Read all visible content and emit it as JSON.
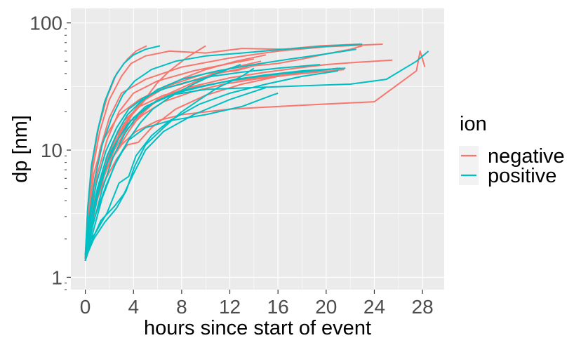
{
  "chart_data": {
    "type": "line",
    "title": "",
    "xlabel": "hours since start of event",
    "ylabel": "dp [nm]",
    "xlim": [
      -1.2,
      29.8
    ],
    "ylim": [
      0.8,
      130
    ],
    "yscale": "log",
    "x_ticks": [
      0,
      4,
      8,
      12,
      16,
      20,
      24,
      28
    ],
    "y_ticks": [
      1,
      10,
      100
    ],
    "grid": true,
    "legend": {
      "title": "ion",
      "position": "right",
      "entries": [
        {
          "label": "negative",
          "color": "#F8766D"
        },
        {
          "label": "positive",
          "color": "#00BFC4"
        }
      ]
    },
    "series": [
      {
        "name": "negative",
        "color": "#F8766D",
        "lines": [
          {
            "x": [
              0,
              0.3,
              0.7,
              1.2,
              2,
              3,
              5,
              8,
              12,
              16,
              20,
              24.7
            ],
            "y": [
              1.4,
              2.5,
              5,
              10,
              18,
              28,
              36,
              45,
              53,
              60,
              65,
              68
            ]
          },
          {
            "x": [
              0,
              0.5,
              1,
              1.8,
              2.8,
              4,
              6,
              9,
              12,
              14
            ],
            "y": [
              1.35,
              3,
              6.5,
              12,
              20,
              28,
              35,
              42,
              48,
              52
            ]
          },
          {
            "x": [
              0,
              0.4,
              1,
              2,
              3,
              4.2,
              6,
              8,
              12,
              16,
              20,
              24,
              27.5,
              27.8,
              28.2
            ],
            "y": [
              1.4,
              2.2,
              4.5,
              8,
              11,
              14,
              17,
              19,
              21,
              22,
              23,
              24,
              42,
              60,
              45
            ]
          },
          {
            "x": [
              0,
              0.5,
              1.2,
              2.4,
              3.2,
              4.5,
              6,
              8.5,
              10,
              12.5,
              14,
              16,
              18,
              20,
              22,
              23
            ],
            "y": [
              1.35,
              2.6,
              5.5,
              11,
              16,
              23,
              30,
              36,
              40,
              42,
              46,
              48,
              52,
              57,
              62,
              66
            ]
          },
          {
            "x": [
              0,
              0.2,
              0.6,
              1.2,
              2,
              3,
              3.8,
              5,
              7,
              10,
              13,
              16.5,
              19.5,
              22.8
            ],
            "y": [
              1.4,
              3,
              7,
              14,
              25,
              38,
              48,
              55,
              60,
              58,
              63,
              62,
              66,
              68
            ]
          },
          {
            "x": [
              0,
              0.3,
              0.8,
              1.5,
              2.5,
              3.6,
              4.5,
              6,
              8.5,
              12,
              15,
              17.5,
              20,
              22.5,
              25.5
            ],
            "y": [
              1.45,
              2.1,
              3.6,
              6.2,
              9.5,
              14,
              18.5,
              25,
              31,
              37,
              41,
              44,
              47,
              49,
              51
            ]
          },
          {
            "x": [
              0,
              0.4,
              1,
              1.8,
              2.6,
              3.5,
              4.2,
              5.3,
              7,
              9,
              11,
              13.5
            ],
            "y": [
              1.4,
              2.4,
              4.8,
              8.5,
              13,
              17,
              17.5,
              22,
              28,
              34,
              40,
              45
            ]
          },
          {
            "x": [
              0.1,
              0.5,
              1.2,
              2,
              3,
              4,
              5.2,
              6,
              7,
              8.5,
              10
            ],
            "y": [
              1.8,
              3,
              5.5,
              9,
              14,
              20,
              27,
              34,
              42,
              54,
              66
            ]
          },
          {
            "x": [
              0,
              0.6,
              1.4,
              2.2,
              3.2,
              4.5,
              6.5,
              9,
              12,
              15.5,
              18.5,
              21
            ],
            "y": [
              1.35,
              2.8,
              6,
              11,
              17,
              22,
              27,
              31,
              35,
              38,
              41,
              44
            ]
          },
          {
            "x": [
              0,
              0.3,
              0.7,
              1.5,
              2.8,
              4.5,
              6.2,
              8,
              10,
              12,
              14.6
            ],
            "y": [
              1.5,
              3.2,
              6.5,
              12,
              19,
              25,
              30,
              33,
              38,
              44,
              50
            ]
          },
          {
            "x": [
              0,
              0.4,
              0.9,
              1.6,
              2.4,
              3.4,
              4.8,
              6.5,
              9,
              11.5,
              14,
              17,
              21.5
            ],
            "y": [
              1.35,
              2.2,
              3.8,
              6.4,
              10,
              14.5,
              19,
              24,
              29,
              33,
              36,
              39,
              43
            ]
          },
          {
            "x": [
              0,
              0.2,
              0.6,
              1.1,
              1.8,
              2.6,
              3.5,
              4.2,
              5.1
            ],
            "y": [
              1.4,
              3.5,
              8,
              15,
              26,
              40,
              52,
              60,
              66
            ]
          },
          {
            "x": [
              0.2,
              0.7,
              1.5,
              2.6,
              3.5,
              4.4,
              5.5,
              7.5,
              10,
              13,
              16,
              18.5
            ],
            "y": [
              2.2,
              3.5,
              5.5,
              8.5,
              11,
              11.5,
              15,
              21,
              27,
              33,
              38,
              42
            ]
          },
          {
            "x": [
              0,
              0.5,
              1.1,
              1.9,
              2.8,
              3.9,
              5,
              6.6,
              8.2,
              10,
              12.5,
              15
            ],
            "y": [
              1.4,
              2.5,
              4.6,
              8.3,
              13,
              19,
              25,
              31,
              37,
              43,
              50,
              56
            ]
          }
        ]
      },
      {
        "name": "positive",
        "color": "#00BFC4",
        "lines": [
          {
            "x": [
              0,
              0.5,
              1.2,
              2.2,
              3.5,
              5,
              7,
              10,
              14,
              18,
              22,
              25,
              27.5,
              28.5
            ],
            "y": [
              1.5,
              2.8,
              5.5,
              10,
              16,
              22,
              27,
              30,
              31,
              32,
              33,
              36,
              50,
              60
            ]
          },
          {
            "x": [
              0,
              0.6,
              1.4,
              2.4,
              3.6,
              5,
              7,
              10,
              13,
              15.5,
              16
            ],
            "y": [
              1.4,
              2.2,
              4.2,
              7.5,
              12,
              15,
              17,
              19,
              22,
              27,
              28
            ]
          },
          {
            "x": [
              0,
              0.4,
              1,
              1.8,
              2.7,
              3.5,
              4.6,
              6,
              8,
              11,
              14,
              17,
              20,
              22.5
            ],
            "y": [
              1.45,
              2.6,
              5,
              9,
              14,
              19,
              24,
              30,
              36,
              42,
              47,
              52,
              57,
              62
            ]
          },
          {
            "x": [
              0.1,
              0.8,
              1.8,
              2.8,
              3.6,
              4.2,
              5.5,
              7,
              9.5,
              12,
              15,
              18,
              21
            ],
            "y": [
              1.8,
              2.2,
              3.2,
              5.5,
              6.2,
              9,
              13,
              17,
              23,
              28,
              33,
              38,
              42
            ]
          },
          {
            "x": [
              0,
              0.3,
              0.8,
              1.4,
              2.2,
              3.1,
              4.1,
              5.5,
              7.5,
              10,
              13,
              16.5,
              19.5,
              23
            ],
            "y": [
              1.4,
              2.9,
              6,
              11,
              18,
              27,
              35,
              43,
              50,
              55,
              58,
              62,
              65,
              68
            ]
          },
          {
            "x": [
              0,
              0.5,
              1.3,
              2.4,
              3.2,
              4,
              5,
              6.5,
              9,
              12,
              15
            ],
            "y": [
              1.35,
              1.9,
              2.8,
              3.6,
              4.5,
              6.5,
              10,
              14,
              19,
              25,
              31
            ]
          },
          {
            "x": [
              0,
              0.3,
              0.9,
              1.7,
              2.6,
              3.6,
              4.9,
              6.4,
              8.3,
              10.5,
              13,
              16,
              19.5
            ],
            "y": [
              1.5,
              2.6,
              5.4,
              9.8,
              15,
              21,
              26,
              30,
              34,
              38,
              41,
              44,
              47
            ]
          },
          {
            "x": [
              0,
              0.7,
              1.6,
              2.6,
              3.4,
              4.1,
              5,
              6.5,
              8,
              9.5,
              11,
              13,
              14
            ],
            "y": [
              1.4,
              2,
              2.7,
              3.5,
              4.8,
              7.5,
              11,
              15,
              20,
              25,
              31,
              38,
              44
            ]
          },
          {
            "x": [
              0,
              0.4,
              1,
              1.8,
              2.8,
              4,
              5.5,
              7.5,
              10,
              12.5,
              15,
              18,
              21.6
            ],
            "y": [
              1.4,
              2.3,
              4.3,
              7.8,
              12.5,
              18,
              23,
              28,
              32,
              36,
              39,
              42,
              44
            ]
          },
          {
            "x": [
              0.2,
              0.8,
              1.7,
              2.7,
              3.7,
              4.6,
              5.6,
              7,
              8.7,
              10.6,
              12.9
            ],
            "y": [
              1.9,
              3,
              5.2,
              8.6,
              12.5,
              16.5,
              21,
              26,
              32,
              39,
              47
            ]
          },
          {
            "x": [
              0,
              0.2,
              0.5,
              1,
              1.6,
              2.4,
              3.2,
              4,
              5,
              6.2
            ],
            "y": [
              1.5,
              3.5,
              7.5,
              14,
              24,
              37,
              48,
              56,
              62,
              66
            ]
          },
          {
            "x": [
              0,
              0.6,
              1.4,
              2.3,
              3.3,
              4.4,
              5.8,
              7.8,
              10.5,
              13.5,
              16.5,
              19,
              21.2
            ],
            "y": [
              1.35,
              2.5,
              4.9,
              8.8,
              13.6,
              19,
              24,
              29,
              33,
              37,
              40,
              42,
              44
            ]
          }
        ]
      }
    ]
  }
}
